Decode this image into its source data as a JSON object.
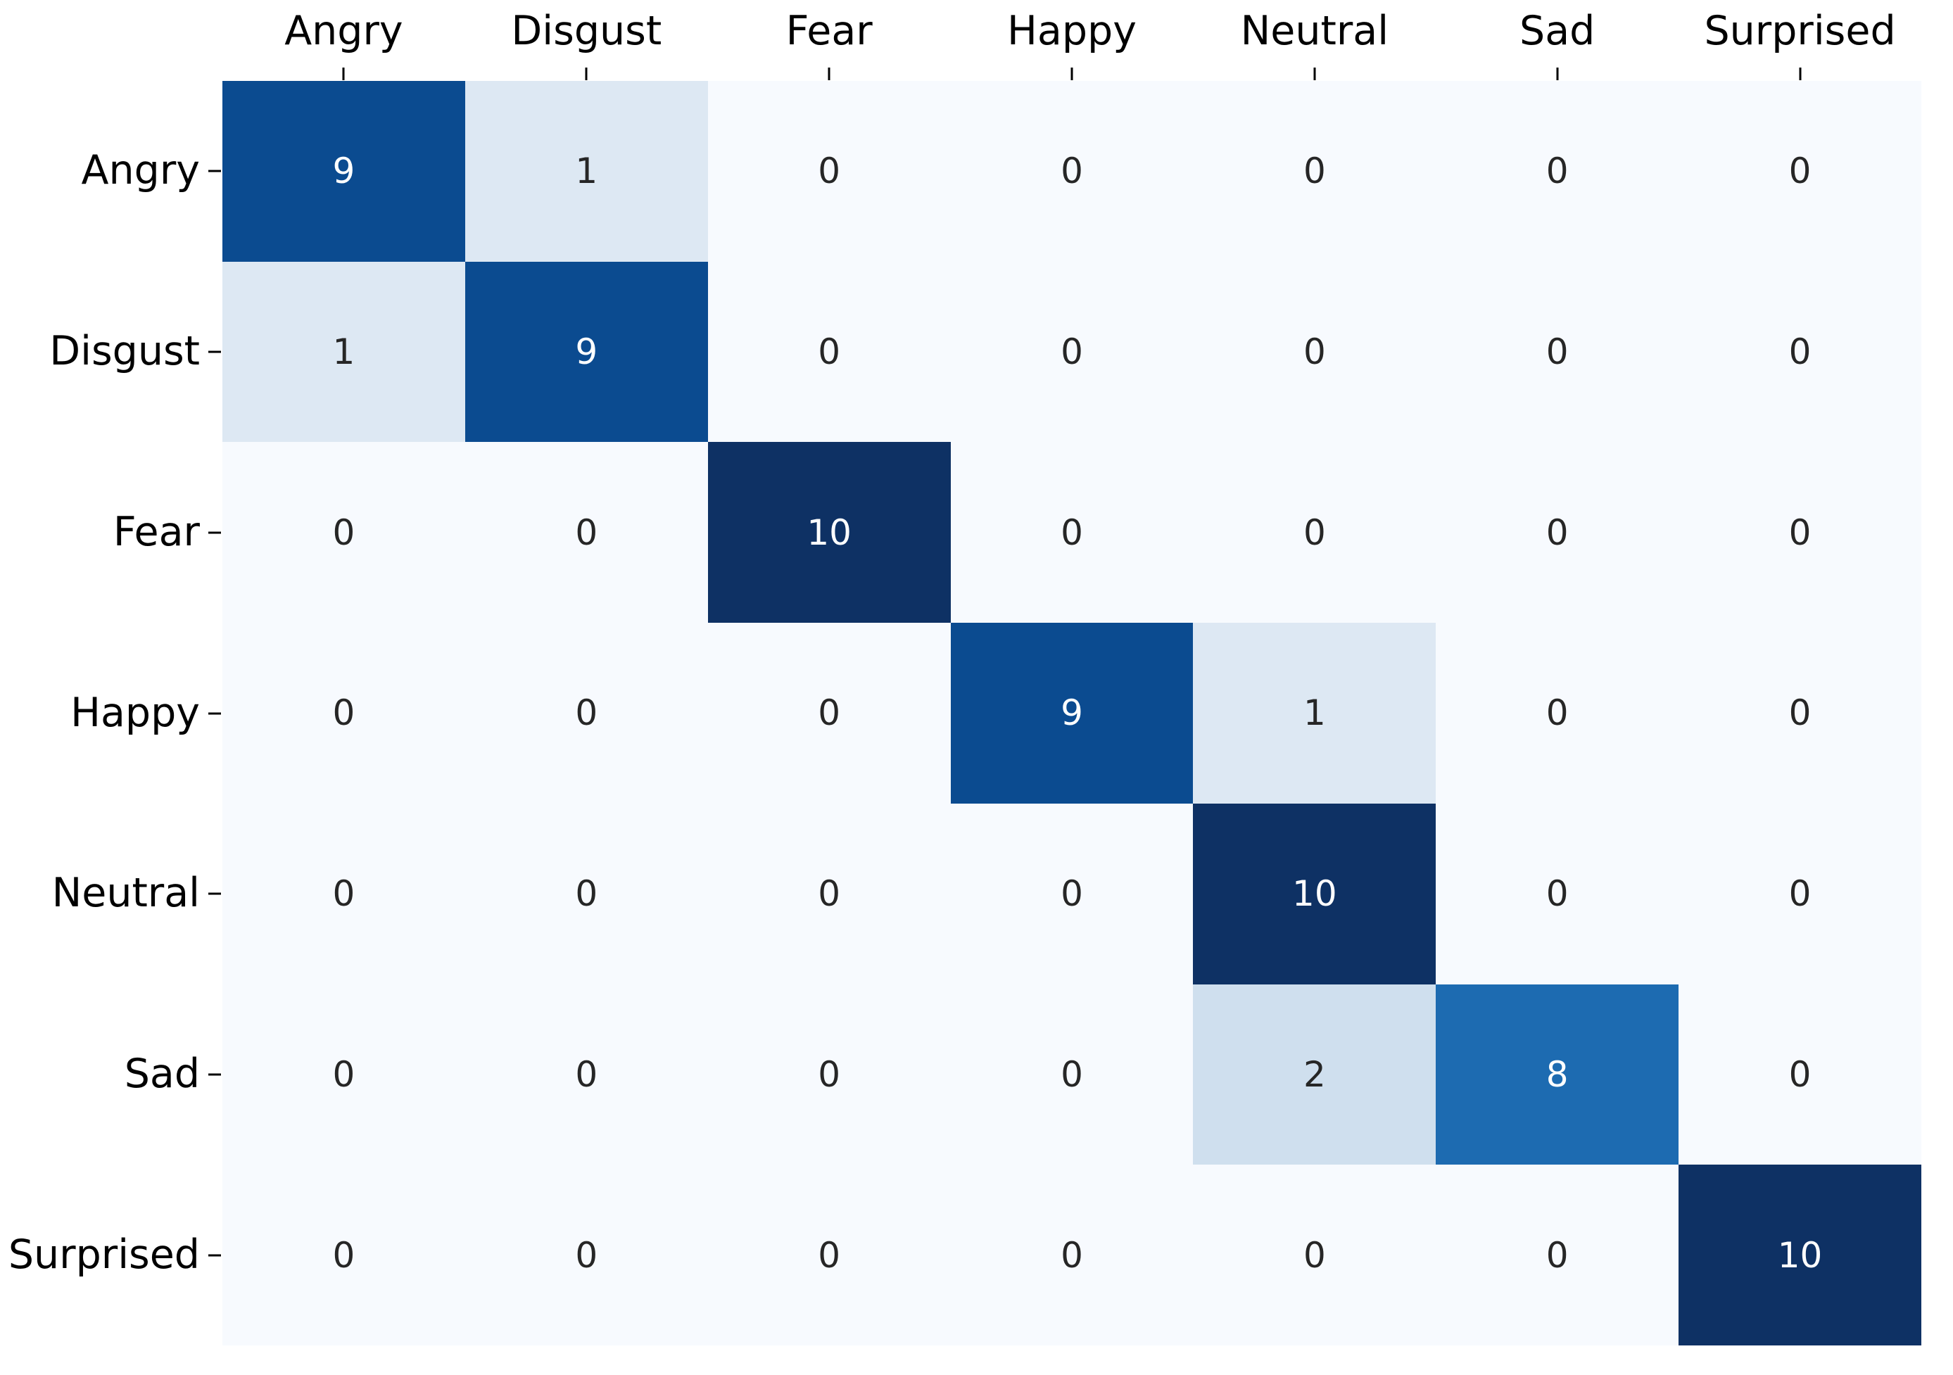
{
  "figure": {
    "background": "#ffffff"
  },
  "chart_data": {
    "type": "heatmap",
    "title": "",
    "xlabel": "",
    "ylabel": "",
    "x_tick_labels": [
      "Angry",
      "Disgust",
      "Fear",
      "Happy",
      "Neutral",
      "Sad",
      "Surprised"
    ],
    "y_tick_labels": [
      "Angry",
      "Disgust",
      "Fear",
      "Happy",
      "Neutral",
      "Sad",
      "Surprised"
    ],
    "matrix": [
      [
        9,
        1,
        0,
        0,
        0,
        0,
        0
      ],
      [
        1,
        9,
        0,
        0,
        0,
        0,
        0
      ],
      [
        0,
        0,
        10,
        0,
        0,
        0,
        0
      ],
      [
        0,
        0,
        0,
        9,
        1,
        0,
        0
      ],
      [
        0,
        0,
        0,
        0,
        10,
        0,
        0
      ],
      [
        0,
        0,
        0,
        0,
        2,
        8,
        0
      ],
      [
        0,
        0,
        0,
        0,
        0,
        0,
        10
      ]
    ],
    "vmin": 0,
    "vmax": 10,
    "colormap": "Blues",
    "value_colors": {
      "0": "#f7fafe",
      "1": "#dde8f3",
      "2": "#cfdfee",
      "8": "#1d6bb1",
      "9": "#0b4b90",
      "10": "#0e3164"
    },
    "annotation_text_colors": {
      "dark": "#262626",
      "light": "#ffffff"
    },
    "light_text_threshold": 8,
    "tick_color": "#000000",
    "grid": false,
    "legend": "none"
  }
}
